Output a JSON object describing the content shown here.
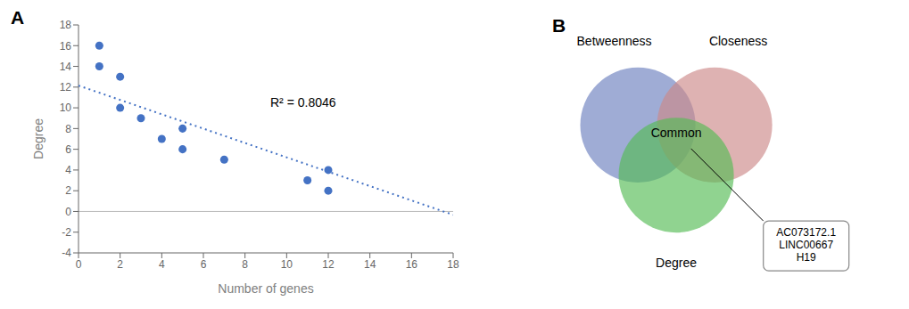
{
  "chart_data": [
    {
      "type": "scatter",
      "title": "A",
      "x": [
        1,
        1,
        2,
        2,
        3,
        4,
        5,
        5,
        7,
        11,
        12,
        12
      ],
      "values": [
        16,
        14,
        13,
        10,
        9,
        7,
        8,
        6,
        5,
        3,
        4,
        2
      ],
      "color": "#4472C4",
      "xlabel": "Number of genes",
      "ylabel": "Degree",
      "xlim": [
        0,
        18
      ],
      "ylim": [
        -4,
        18
      ],
      "xticks": [
        0,
        2,
        4,
        6,
        8,
        10,
        12,
        14,
        16,
        18
      ],
      "yticks": [
        -4,
        -2,
        0,
        2,
        4,
        6,
        8,
        10,
        12,
        14,
        16,
        18
      ],
      "grid": false,
      "trend_line": {
        "x": [
          0,
          18
        ],
        "values": [
          12.15,
          -0.324
        ],
        "color": "#4472C4",
        "line_style": "dotted"
      },
      "hlines": [
        0
      ],
      "annotations": [
        {
          "text": "R² = 0.8046",
          "x": 9,
          "y": 10.5
        }
      ]
    },
    {
      "type": "venn",
      "title": "B",
      "sets": [
        {
          "name": "Betweenness",
          "color": "#6B7FBF"
        },
        {
          "name": "Closeness",
          "color": "#CC8888"
        },
        {
          "name": "Degree",
          "color": "#55BB55"
        }
      ],
      "common_label": "Common",
      "annotation": "AC073172.1\nLINC00667\nH19"
    }
  ]
}
